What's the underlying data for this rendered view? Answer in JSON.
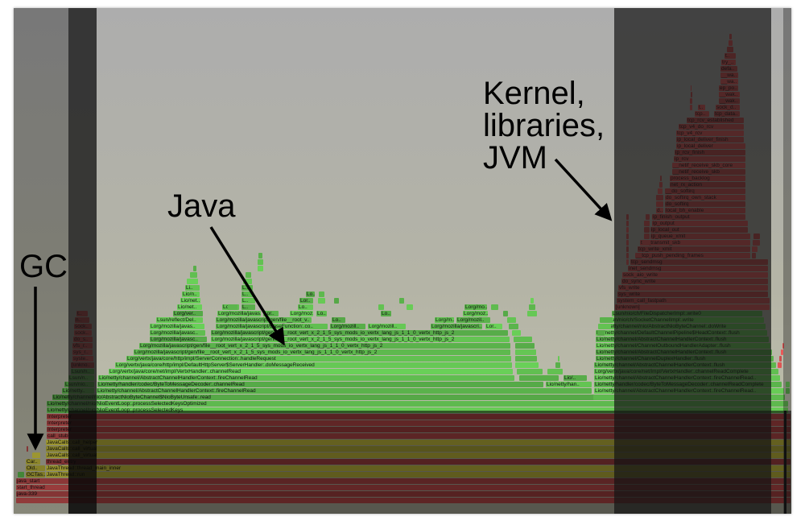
{
  "annotations": {
    "kernel": [
      "Kernel,",
      "libraries,",
      "JVM"
    ],
    "java": "Java",
    "gc": "GC"
  },
  "colors": {
    "java_frame": "#5fbb4f",
    "native_frame": "#c85050",
    "jvm_frame": "#c8c040",
    "kernel_frame": "#d45050",
    "background_top": "#adadad",
    "background_bottom": "#c2c2ae"
  },
  "flamegraph": {
    "frames": [
      "java-339",
      "start_thread",
      "java_start",
      "GCTas..",
      "JavaThread::run",
      "Old..",
      "JavaThread::thread_main_inner",
      "Car..",
      "thread_entry",
      "JavaCalls::call_virtual",
      "JavaCalls::call_virtual",
      "JavaCalls::call_helper",
      "call_stub",
      "Interpreter",
      "Interpreter",
      "Interpreter",
      "Lio/netty/channel/nio/NioEventLoop:.processSelectedKeys",
      "Lio/netty/channel/nio/NioEventLoop:.processSelectedKeysOptimized",
      "Lio/netty/channel/nio/AbstractNioByteChannel$NioByteUnsafe:.read",
      "Lio/netty..",
      "Lio/netty/channel/AbstractChannelHandlerContext:.fireChannelRead",
      "Lio/netty/channel/AbstractChannelHandlerContext:.fireChannelRead..",
      "Lsun/nio..",
      "Lio/netty/handler/codec/ByteToMessageDecoder:.channelRead",
      "Lio/netty/han..",
      "Lio/netty/handler/codec/ByteToMessageDecoder:.channelReadComplete",
      "Lsun/n..",
      "Lio/netty/channel/AbstractChannelHandlerContext:.fireChannelRead",
      "Lio/..",
      "Lio/netty/channel/AbstractChannelHandlerContext:.fireChannelRead..",
      "Lsun/n..",
      "Lorg/vertx/java/core/net/impl/VertxHandler:.channelRead",
      "Lorg/vertx/java/core/net/impl/VertxHandler:.channelReadComplete",
      "[unkno..",
      "Lorg/vertx/java/core/http/impl/DefaultHttpServer$ServerHandler:.doMessageReceived",
      "Lio/netty/channel/AbstractChannelHandlerContext:.flush",
      "syste..",
      "Lorg/vertx/java/core/http/impl/ServerConnection:.handleRequest",
      "Lio/netty/channel/ChannelDuplexHandler:.flush",
      "sys_r..",
      "Lorg/mozilla/javascript/gen/file__root_vert_x_2_1_5_sys_mods_io_vertx_lang_js_1_1_0_vertx_http_js_2",
      "Lio/netty/channel/AbstractChannelHandlerContext:.flush",
      "vfs_r..",
      "Lorg/mozilla/javascript/gen/file__root_vert_x_2_1_5_sys_mods_io_vertx_lang_js_1_1_0_vertx_http_js_2",
      "Lio/netty/channel/ChannelOutboundHandlerAdapter:.flush",
      "do_s..",
      "Lorg/mozilla/javasc..",
      "Lorg/mozilla/javascript/gen/file__root_vert_x_2_1_5_sys_mods_io_vertx_lang_js_1_1_0_vertx_http_js_2",
      "Lio/netty/channel/AbstractChannelHandlerContext:.flush",
      "sock..",
      "Lorg/mozilla/javasc..",
      "Lorg/mozilla/javascript/gen/file__root_vert_x_2_1_5_sys_mods_io_vertx_lang_js_1_1_0_vertx_http_js_2",
      "Lio/netty/channel/DefaultChannelPipeline$HeadContext:.flush",
      "sock..",
      "Lorg/mozilla/javas..",
      "Lorg/mozilla/javascript/BaseFunction:.co..",
      "Lorg/mozill..",
      "Lorg/mozill..",
      "Lorg/mozilla/javascri..",
      "Lor..",
      "Lio/netty/channel/nio/AbstractNioByteChannel:.doWrite",
      "n..",
      "Lsun/reflect/Del..",
      "Lorg/mozilla/javascript/gen/file__root_v..",
      "Lo..",
      "Lorg/m..",
      "Lorg/mozil..",
      "Lsun/nio/ch/SocketChannelImpl:.write",
      "t..",
      "Lorg/ver..",
      "Lorg/mozilla/javas..",
      "Lor..",
      "Lorg/moz..",
      "Lo..",
      "Lo..",
      "Lorg/moz..",
      "Lsun/nio/ch/FileDispatcherImpl:.write0",
      "Lio/net..",
      "Lo..",
      "L..",
      "Lo..",
      "Lorg/mo..",
      "Lio/net..",
      "L..",
      "Lor..",
      "Lio/n..",
      "L..",
      "Lo..",
      "Li..",
      "L..",
      "[unknown]",
      "system_call_fastpath",
      "sys_write",
      "vfs_write",
      "do_sync_write",
      "sock_aio_write",
      "inet_sendmsg",
      "tcp_sendmsg",
      "__tcp_push_pending_frames",
      "tcp_write_xmit",
      "tcp_transmit_skb",
      "ip_queue_xmit",
      "ip_local_out",
      "ip_output",
      "ip_finish_output",
      "d..",
      "local_bh_enable",
      "do_softirq",
      "do_softirq_own_stack",
      "__do_softirq",
      "net_rx_action",
      "process_backlog",
      "__netif_receive_skb",
      "__netif_receive_skb_core",
      "ip_rcv",
      "ip_rcv_finish",
      "ip_local_deliver",
      "ip_local_deliver_finish",
      "tcp_v4_rcv",
      "tcp_v4_do_rcv",
      "tcp_rcv_established",
      "tcp..",
      "tcp_data..",
      "t..",
      "sock_d..",
      "__wak..",
      "__wak..",
      "ep_po..",
      "__wa..",
      "__wa..",
      "defa..",
      "try_..",
      "t.."
    ]
  }
}
